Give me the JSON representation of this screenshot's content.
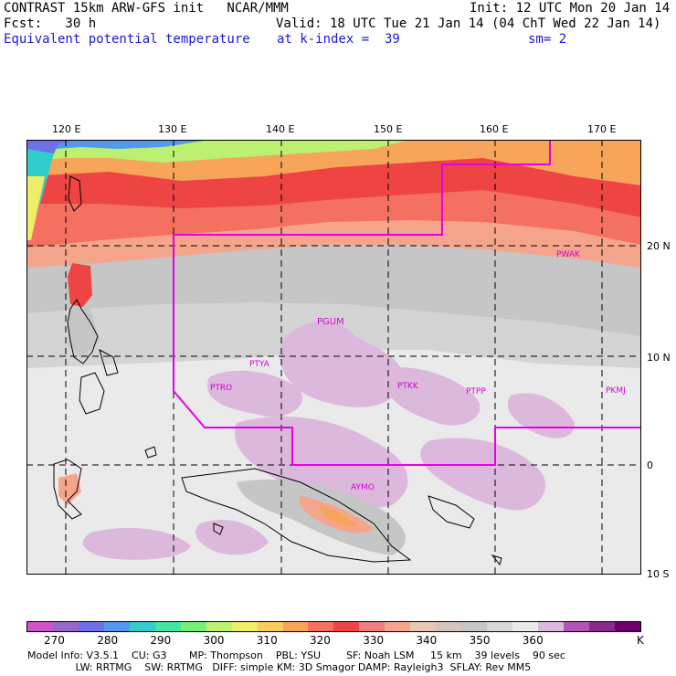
{
  "header": {
    "line1_left": "CONTRAST 15km ARW-GFS init   NCAR/MMM",
    "line1_right": "Init: 12 UTC Mon 20 Jan 14",
    "line2_left": "Fcst:   30 h",
    "line2_right": "Valid: 18 UTC Tue 21 Jan 14 (04 ChT Wed 22 Jan 14)",
    "field_name": "Equivalent potential temperature",
    "level": "at k-index =  39",
    "smoothing": "sm= 2"
  },
  "map": {
    "lon_labels": [
      "120 E",
      "130 E",
      "140 E",
      "150 E",
      "160 E",
      "170 E"
    ],
    "lat_labels": [
      "20 N",
      "10 N",
      "0",
      "10 S"
    ],
    "stations": [
      "PWAK",
      "PGUM",
      "PTYA",
      "PTRO",
      "PTKK",
      "PTPP",
      "PKMJ",
      "AYMO"
    ]
  },
  "legend": {
    "colors": [
      "#cc55cc",
      "#9966cc",
      "#6f6fe6",
      "#5599ee",
      "#33cccc",
      "#44e6a0",
      "#77ee77",
      "#bbf070",
      "#eeee66",
      "#f7cd5c",
      "#f7a55a",
      "#f47060",
      "#ee4444",
      "#f08080",
      "#f5a58c",
      "#e8c8b4",
      "#d4c4bc",
      "#c6c6c6",
      "#d8d8d8",
      "#eaeaea",
      "#dcb8dc",
      "#b454b4",
      "#8a2a8a",
      "#6e006e"
    ],
    "labels": [
      "270",
      "280",
      "290",
      "300",
      "310",
      "320",
      "330",
      "340",
      "350",
      "360",
      "K"
    ],
    "unit": "K"
  },
  "footer": {
    "line1": "Model Info: V3.5.1    CU: G3       MP: Thompson    PBL: YSU        SF: Noah LSM     15 km    39 levels    90 sec",
    "line2": "               LW: RRTMG    SW: RRTMG   DIFF: simple KM: 3D Smagor DAMP: Rayleigh3  SFLAY: Rev MM5"
  }
}
